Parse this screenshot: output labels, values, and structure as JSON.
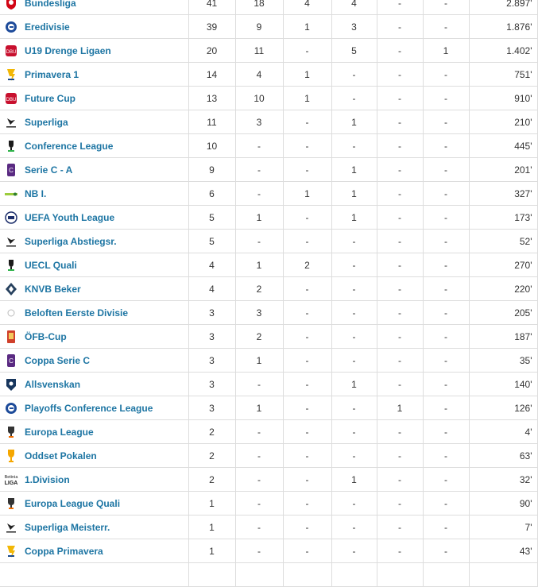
{
  "colors": {
    "link": "#1d75a3",
    "border": "#dddddd"
  },
  "rows": [
    {
      "icon": "bundesliga-logo-icon",
      "competition": "Bundesliga",
      "stats": [
        "41",
        "18",
        "4",
        "4",
        "-",
        "-",
        "2.897'"
      ]
    },
    {
      "icon": "eredivisie-logo-icon",
      "competition": "Eredivisie",
      "stats": [
        "39",
        "9",
        "1",
        "3",
        "-",
        "-",
        "1.876'"
      ]
    },
    {
      "icon": "dbu-logo-icon",
      "competition": "U19 Drenge Ligaen",
      "stats": [
        "20",
        "11",
        "-",
        "5",
        "-",
        "1",
        "1.402'"
      ]
    },
    {
      "icon": "primavera-logo-icon",
      "competition": "Primavera 1",
      "stats": [
        "14",
        "4",
        "1",
        "-",
        "-",
        "-",
        "751'"
      ]
    },
    {
      "icon": "dbu-logo-icon",
      "competition": "Future Cup",
      "stats": [
        "13",
        "10",
        "1",
        "-",
        "-",
        "-",
        "910'"
      ]
    },
    {
      "icon": "superliga-logo-icon",
      "competition": "Superliga",
      "stats": [
        "11",
        "3",
        "-",
        "1",
        "-",
        "-",
        "210'"
      ]
    },
    {
      "icon": "conference-league-logo-icon",
      "competition": "Conference League",
      "stats": [
        "10",
        "-",
        "-",
        "-",
        "-",
        "-",
        "445'"
      ]
    },
    {
      "icon": "serie-c-logo-icon",
      "competition": "Serie C - A",
      "stats": [
        "9",
        "-",
        "-",
        "1",
        "-",
        "-",
        "201'"
      ]
    },
    {
      "icon": "nb-i-logo-icon",
      "competition": "NB I.",
      "stats": [
        "6",
        "-",
        "1",
        "1",
        "-",
        "-",
        "327'"
      ]
    },
    {
      "icon": "uefa-youth-league-logo-icon",
      "competition": "UEFA Youth League",
      "stats": [
        "5",
        "1",
        "-",
        "1",
        "-",
        "-",
        "173'"
      ]
    },
    {
      "icon": "superliga-logo-icon",
      "competition": "Superliga Abstiegsr.",
      "stats": [
        "5",
        "-",
        "-",
        "-",
        "-",
        "-",
        "52'"
      ]
    },
    {
      "icon": "conference-league-logo-icon",
      "competition": "UECL Quali",
      "stats": [
        "4",
        "1",
        "2",
        "-",
        "-",
        "-",
        "270'"
      ]
    },
    {
      "icon": "knvb-logo-icon",
      "competition": "KNVB Beker",
      "stats": [
        "4",
        "2",
        "-",
        "-",
        "-",
        "-",
        "220'"
      ]
    },
    {
      "icon": "beloften-logo-icon",
      "competition": "Beloften Eerste Divisie",
      "stats": [
        "3",
        "3",
        "-",
        "-",
        "-",
        "-",
        "205'"
      ]
    },
    {
      "icon": "ofb-cup-logo-icon",
      "competition": "ÖFB-Cup",
      "stats": [
        "3",
        "2",
        "-",
        "-",
        "-",
        "-",
        "187'"
      ]
    },
    {
      "icon": "serie-c-logo-icon",
      "competition": "Coppa Serie C",
      "stats": [
        "3",
        "1",
        "-",
        "-",
        "-",
        "-",
        "35'"
      ]
    },
    {
      "icon": "allsvenskan-logo-icon",
      "competition": "Allsvenskan",
      "stats": [
        "3",
        "-",
        "-",
        "1",
        "-",
        "-",
        "140'"
      ]
    },
    {
      "icon": "eredivisie-logo-icon",
      "competition": "Playoffs Conference League",
      "stats": [
        "3",
        "1",
        "-",
        "-",
        "1",
        "-",
        "126'"
      ]
    },
    {
      "icon": "europa-league-logo-icon",
      "competition": "Europa League",
      "stats": [
        "2",
        "-",
        "-",
        "-",
        "-",
        "-",
        "4'"
      ]
    },
    {
      "icon": "trophy-icon",
      "competition": "Oddset Pokalen",
      "stats": [
        "2",
        "-",
        "-",
        "-",
        "-",
        "-",
        "63'"
      ]
    },
    {
      "icon": "betinia-liga-logo-icon",
      "competition": "1.Division",
      "stats": [
        "2",
        "-",
        "-",
        "1",
        "-",
        "-",
        "32'"
      ]
    },
    {
      "icon": "europa-league-logo-icon",
      "competition": "Europa League Quali",
      "stats": [
        "1",
        "-",
        "-",
        "-",
        "-",
        "-",
        "90'"
      ]
    },
    {
      "icon": "superliga-logo-icon",
      "competition": "Superliga Meisterr.",
      "stats": [
        "1",
        "-",
        "-",
        "-",
        "-",
        "-",
        "7'"
      ]
    },
    {
      "icon": "primavera-logo-icon",
      "competition": "Coppa Primavera",
      "stats": [
        "1",
        "-",
        "-",
        "-",
        "-",
        "-",
        "43'"
      ]
    },
    {
      "icon": "blank",
      "competition": "",
      "stats": [
        "",
        "",
        "",
        "",
        "",
        "",
        ""
      ]
    }
  ]
}
